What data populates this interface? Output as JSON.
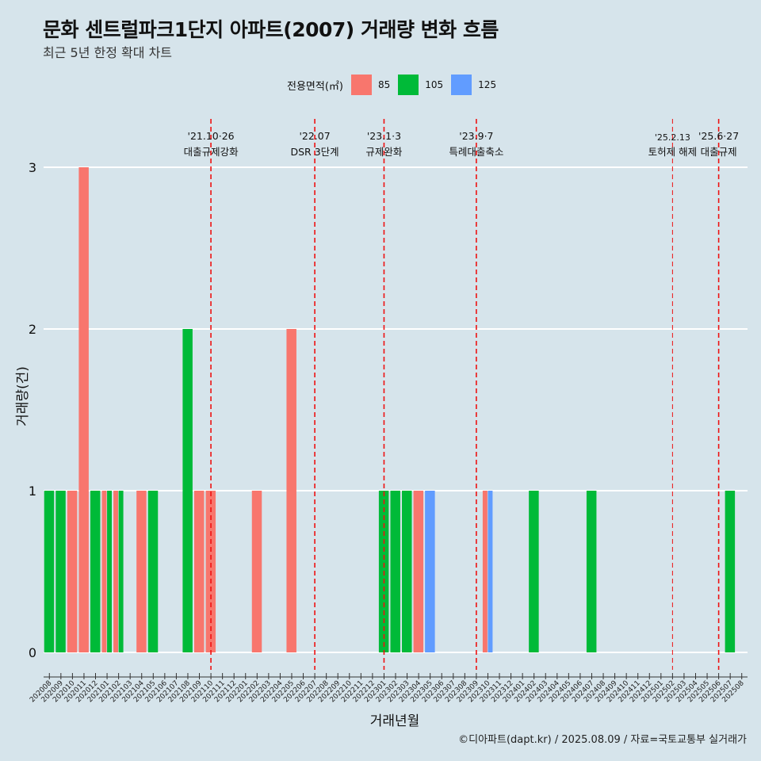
{
  "title": "문화 센트럴파크1단지 아파트(2007) 거래량 변화 흐름",
  "subtitle": "최근 5년 한정 확대 차트",
  "caption": "©디아파트(dapt.kr) / 2025.08.09 / 자료=국토교통부 실거래가",
  "legend": {
    "title": "전용면적(㎡)",
    "items": [
      {
        "label": "85",
        "color": "#F8766D"
      },
      {
        "label": "105",
        "color": "#00BA38"
      },
      {
        "label": "125",
        "color": "#619CFF"
      }
    ]
  },
  "chart_data": {
    "type": "bar",
    "title": "문화 센트럴파크1단지 아파트(2007) 거래량 변화 흐름",
    "subtitle": "최근 5년 한정 확대 차트",
    "xlabel": "거래년월",
    "ylabel": "거래량(건)",
    "ylim": [
      0,
      3
    ],
    "yticks": [
      0,
      1,
      2,
      3
    ],
    "grid": true,
    "legend_position": "top",
    "categories": [
      "202008",
      "202009",
      "202010",
      "202011",
      "202012",
      "202101",
      "202102",
      "202103",
      "202104",
      "202105",
      "202106",
      "202107",
      "202108",
      "202109",
      "202110",
      "202111",
      "202112",
      "202201",
      "202202",
      "202203",
      "202204",
      "202205",
      "202206",
      "202207",
      "202208",
      "202209",
      "202210",
      "202211",
      "202212",
      "202301",
      "202302",
      "202303",
      "202304",
      "202305",
      "202306",
      "202307",
      "202308",
      "202309",
      "202310",
      "202311",
      "202312",
      "202401",
      "202402",
      "202403",
      "202404",
      "202405",
      "202406",
      "202407",
      "202408",
      "202409",
      "202410",
      "202411",
      "202412",
      "202501",
      "202502",
      "202503",
      "202504",
      "202505",
      "202506",
      "202507",
      "202508"
    ],
    "series": [
      {
        "name": "85",
        "color": "#F8766D",
        "values": [
          0,
          0,
          1,
          3,
          0,
          1,
          1,
          0,
          1,
          0,
          0,
          0,
          0,
          1,
          1,
          0,
          0,
          0,
          1,
          0,
          0,
          2,
          0,
          0,
          0,
          0,
          0,
          0,
          0,
          0,
          0,
          0,
          1,
          0,
          0,
          0,
          0,
          0,
          1,
          0,
          0,
          0,
          0,
          0,
          0,
          0,
          0,
          0,
          0,
          0,
          0,
          0,
          0,
          0,
          0,
          0,
          0,
          0,
          0,
          0,
          0
        ]
      },
      {
        "name": "105",
        "color": "#00BA38",
        "values": [
          1,
          1,
          0,
          0,
          1,
          1,
          1,
          0,
          0,
          1,
          0,
          0,
          2,
          0,
          0,
          0,
          0,
          0,
          0,
          0,
          0,
          0,
          0,
          0,
          0,
          0,
          0,
          0,
          0,
          1,
          1,
          1,
          0,
          0,
          0,
          0,
          0,
          0,
          0,
          0,
          0,
          0,
          1,
          0,
          0,
          0,
          0,
          1,
          0,
          0,
          0,
          0,
          0,
          0,
          0,
          0,
          0,
          0,
          0,
          1,
          0
        ]
      },
      {
        "name": "125",
        "color": "#619CFF",
        "values": [
          0,
          0,
          0,
          0,
          0,
          0,
          0,
          0,
          0,
          0,
          0,
          0,
          0,
          0,
          0,
          0,
          0,
          0,
          0,
          0,
          0,
          0,
          0,
          0,
          0,
          0,
          0,
          0,
          0,
          0,
          0,
          0,
          0,
          1,
          0,
          0,
          0,
          0,
          1,
          0,
          0,
          0,
          0,
          0,
          0,
          0,
          0,
          0,
          0,
          0,
          0,
          0,
          0,
          0,
          0,
          0,
          0,
          0,
          0,
          0,
          0
        ]
      }
    ],
    "annotations": [
      {
        "x": "202110",
        "date": "'21.10·26",
        "label": "대출규제강화"
      },
      {
        "x": "202207",
        "date": "'22.07",
        "label": "DSR 3단계"
      },
      {
        "x": "202301",
        "date": "'23.1·3",
        "label": "규제완화"
      },
      {
        "x": "202309",
        "date": "'23.9·7",
        "label": "특례대출축소"
      },
      {
        "x": "202502",
        "date": "'25.2.13",
        "label": "토허제 해제"
      },
      {
        "x": "202506",
        "date": "'25.6·27",
        "label": "대출규제"
      }
    ]
  }
}
